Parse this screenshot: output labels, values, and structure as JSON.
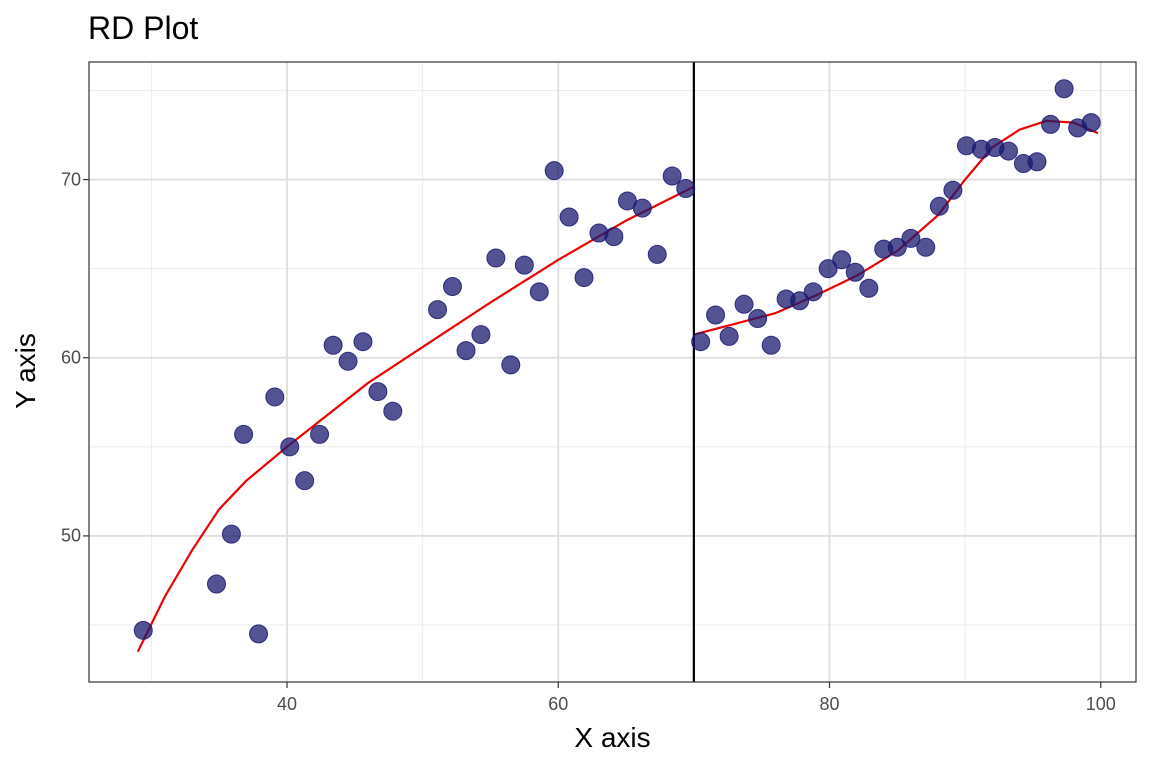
{
  "chart_data": {
    "type": "scatter",
    "title": "RD Plot",
    "xlabel": "X axis",
    "ylabel": "Y axis",
    "xlim": [
      25.4,
      102.6
    ],
    "ylim": [
      41.8,
      76.6
    ],
    "xticks": [
      40,
      60,
      80,
      100
    ],
    "yticks": [
      50,
      60,
      70
    ],
    "xminor": [
      30,
      50,
      70,
      90
    ],
    "yminor": [
      45,
      55,
      65,
      75
    ],
    "cutoff": 70,
    "grid": true,
    "point_color": "#191970",
    "fit_color": "#ee0000",
    "cutoff_color": "#000000",
    "points": [
      [
        29.4,
        44.7
      ],
      [
        34.8,
        47.3
      ],
      [
        35.9,
        50.1
      ],
      [
        36.8,
        55.7
      ],
      [
        37.9,
        44.5
      ],
      [
        39.1,
        57.8
      ],
      [
        40.2,
        55.0
      ],
      [
        41.3,
        53.1
      ],
      [
        42.4,
        55.7
      ],
      [
        43.4,
        60.7
      ],
      [
        44.5,
        59.8
      ],
      [
        45.6,
        60.9
      ],
      [
        46.7,
        58.1
      ],
      [
        47.8,
        57.0
      ],
      [
        51.1,
        62.7
      ],
      [
        52.2,
        64.0
      ],
      [
        53.2,
        60.4
      ],
      [
        54.3,
        61.3
      ],
      [
        55.4,
        65.6
      ],
      [
        56.5,
        59.6
      ],
      [
        57.5,
        65.2
      ],
      [
        58.6,
        63.7
      ],
      [
        59.7,
        70.5
      ],
      [
        60.8,
        67.9
      ],
      [
        61.9,
        64.5
      ],
      [
        63.0,
        67.0
      ],
      [
        64.1,
        66.8
      ],
      [
        65.1,
        68.8
      ],
      [
        66.2,
        68.4
      ],
      [
        67.3,
        65.8
      ],
      [
        68.4,
        70.2
      ],
      [
        69.4,
        69.5
      ],
      [
        70.5,
        60.9
      ],
      [
        71.6,
        62.4
      ],
      [
        72.6,
        61.2
      ],
      [
        73.7,
        63.0
      ],
      [
        74.7,
        62.2
      ],
      [
        75.7,
        60.7
      ],
      [
        76.8,
        63.3
      ],
      [
        77.8,
        63.2
      ],
      [
        78.8,
        63.7
      ],
      [
        79.9,
        65.0
      ],
      [
        80.9,
        65.5
      ],
      [
        81.9,
        64.8
      ],
      [
        82.9,
        63.9
      ],
      [
        84.0,
        66.1
      ],
      [
        85.0,
        66.2
      ],
      [
        86.0,
        66.7
      ],
      [
        87.1,
        66.2
      ],
      [
        88.1,
        68.5
      ],
      [
        89.1,
        69.4
      ],
      [
        90.1,
        71.9
      ],
      [
        91.2,
        71.7
      ],
      [
        92.2,
        71.8
      ],
      [
        93.2,
        71.6
      ],
      [
        94.3,
        70.9
      ],
      [
        95.3,
        71.0
      ],
      [
        96.3,
        73.1
      ],
      [
        97.3,
        75.1
      ],
      [
        98.3,
        72.9
      ],
      [
        99.3,
        73.2
      ]
    ],
    "fit_left": [
      [
        29.0,
        43.5
      ],
      [
        31.0,
        46.6
      ],
      [
        33.0,
        49.2
      ],
      [
        35.0,
        51.5
      ],
      [
        37.0,
        53.1
      ],
      [
        40.0,
        55.0
      ],
      [
        43.0,
        56.8
      ],
      [
        46.0,
        58.6
      ],
      [
        50.0,
        60.6
      ],
      [
        55.0,
        63.1
      ],
      [
        60.0,
        65.5
      ],
      [
        65.0,
        67.7
      ],
      [
        70.0,
        69.6
      ]
    ],
    "fit_right": [
      [
        70.0,
        61.3
      ],
      [
        73.0,
        61.9
      ],
      [
        76.0,
        62.5
      ],
      [
        79.0,
        63.5
      ],
      [
        82.0,
        64.6
      ],
      [
        85.0,
        66.0
      ],
      [
        88.0,
        68.0
      ],
      [
        90.0,
        70.0
      ],
      [
        92.0,
        71.8
      ],
      [
        94.0,
        72.8
      ],
      [
        96.0,
        73.3
      ],
      [
        98.0,
        73.2
      ],
      [
        99.8,
        72.6
      ]
    ]
  }
}
